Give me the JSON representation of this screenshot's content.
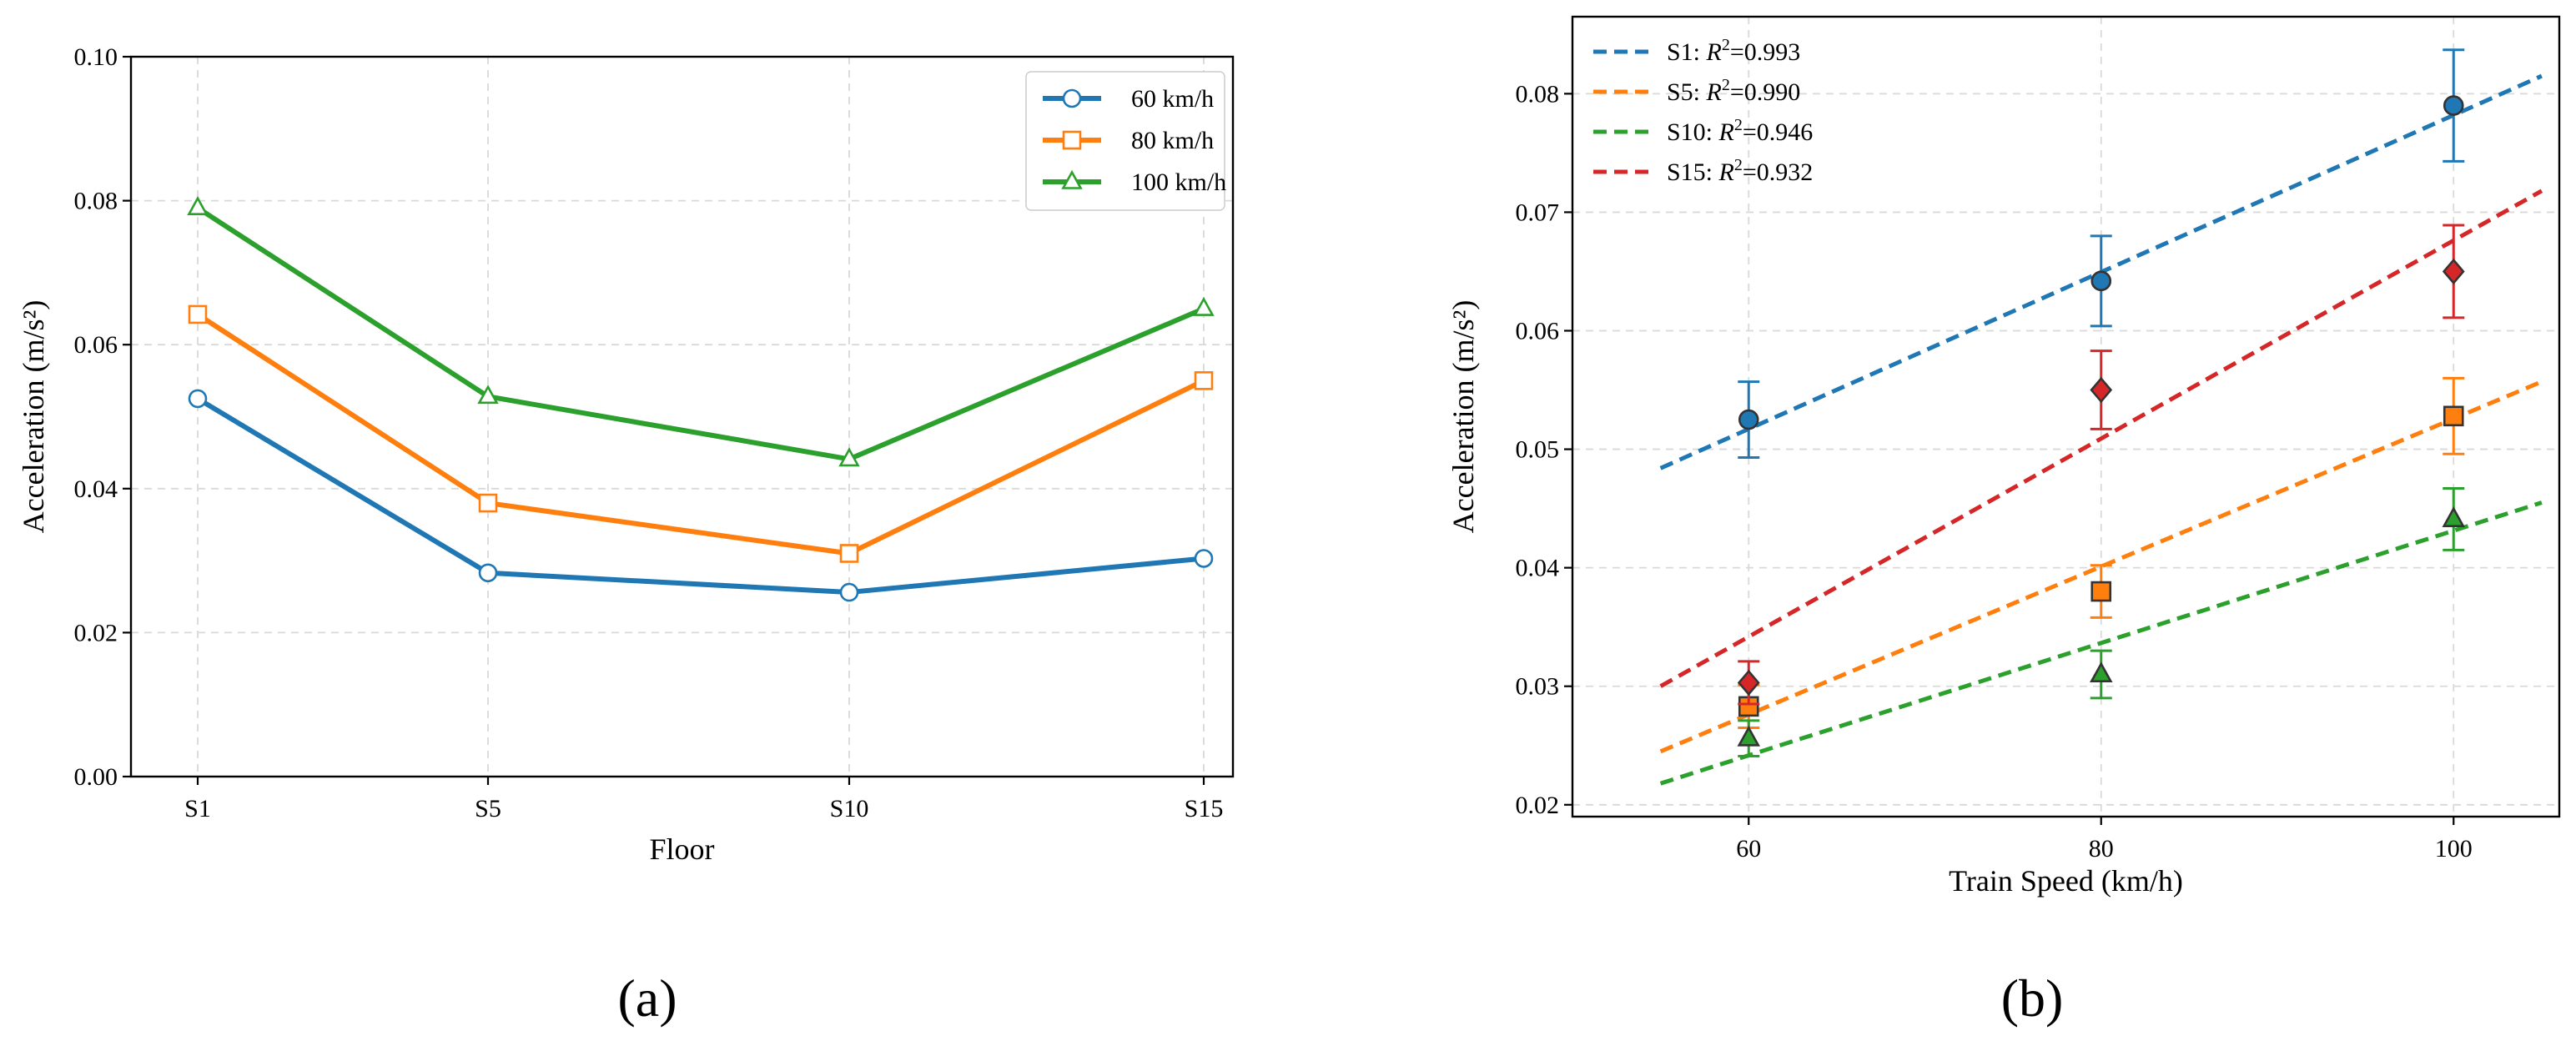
{
  "chart_data": [
    {
      "type": "line",
      "panel_label": "(a)",
      "xlabel": "Floor",
      "ylabel": "Acceleration (m/s²)",
      "categories": [
        "S1",
        "S5",
        "S10",
        "S15"
      ],
      "ylim": [
        0,
        0.1
      ],
      "yticks": [
        "0.00",
        "0.02",
        "0.04",
        "0.06",
        "0.08",
        "0.10"
      ],
      "legend_position": "top-right",
      "grid": true,
      "series": [
        {
          "name": "60 km/h",
          "color": "#1f77b4",
          "marker": "circle",
          "values": [
            0.0525,
            0.0283,
            0.0256,
            0.0303
          ]
        },
        {
          "name": "80 km/h",
          "color": "#ff7f0e",
          "marker": "square",
          "values": [
            0.0642,
            0.038,
            0.031,
            0.055
          ]
        },
        {
          "name": "100 km/h",
          "color": "#2ca02c",
          "marker": "triangle",
          "values": [
            0.079,
            0.0528,
            0.0441,
            0.065
          ]
        }
      ]
    },
    {
      "type": "scatter",
      "panel_label": "(b)",
      "xlabel": "Train Speed (km/h)",
      "ylabel": "Acceleration (m/s²)",
      "xlim": [
        50,
        106
      ],
      "xticks": [
        "60",
        "80",
        "100"
      ],
      "ylim": [
        0.019,
        0.0865
      ],
      "yticks": [
        "0.02",
        "0.03",
        "0.04",
        "0.05",
        "0.06",
        "0.07",
        "0.08"
      ],
      "legend_position": "top-left",
      "grid": true,
      "fit_range": [
        55,
        105
      ],
      "series": [
        {
          "name": "S1",
          "r2_label": "=0.993",
          "color": "#1f77b4",
          "marker": "circle",
          "x": [
            60,
            80,
            100
          ],
          "values": [
            0.0525,
            0.0642,
            0.079
          ],
          "errors": [
            0.0032,
            0.0038,
            0.0047
          ],
          "fit": [
            0.0484,
            0.0815
          ]
        },
        {
          "name": "S5",
          "r2_label": "=0.990",
          "color": "#ff7f0e",
          "marker": "square",
          "x": [
            60,
            80,
            100
          ],
          "values": [
            0.0283,
            0.038,
            0.0528
          ],
          "errors": [
            0.0018,
            0.0022,
            0.0032
          ],
          "fit": [
            0.0245,
            0.0557
          ]
        },
        {
          "name": "S10",
          "r2_label": "=0.946",
          "color": "#2ca02c",
          "marker": "triangle",
          "x": [
            60,
            80,
            100
          ],
          "values": [
            0.0256,
            0.031,
            0.0441
          ],
          "errors": [
            0.0015,
            0.002,
            0.0026
          ],
          "fit": [
            0.0218,
            0.0455
          ]
        },
        {
          "name": "S15",
          "r2_label": "=0.932",
          "color": "#d62728",
          "marker": "diamond",
          "x": [
            60,
            80,
            100
          ],
          "values": [
            0.0303,
            0.055,
            0.065
          ],
          "errors": [
            0.0018,
            0.0033,
            0.0039
          ],
          "fit": [
            0.03,
            0.0718
          ]
        }
      ]
    }
  ]
}
